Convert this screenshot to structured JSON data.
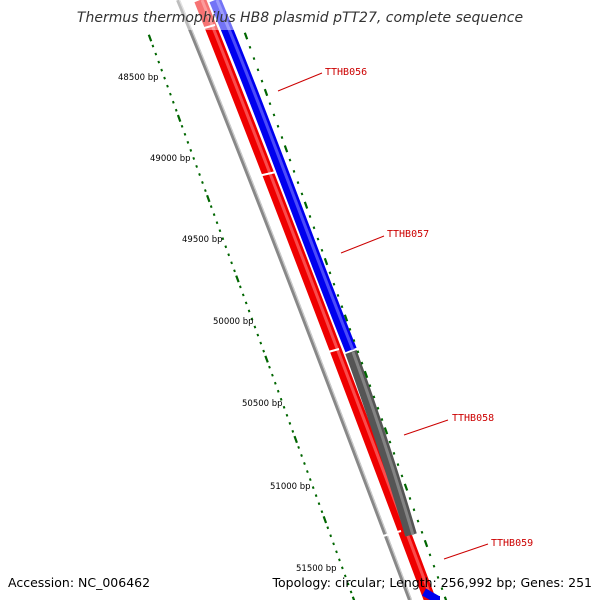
{
  "title": "Thermus thermophilus HB8 plasmid pTT27, complete sequence",
  "footer": {
    "accession": "Accession: NC_006462",
    "summary": "Topology: circular; Length: 256,992 bp; Genes: 251"
  },
  "ruler": {
    "labels": [
      "48500 bp",
      "49000 bp",
      "49500 bp",
      "50000 bp",
      "50500 bp",
      "51000 bp",
      "51500 bp"
    ]
  },
  "genes": [
    {
      "name": "TTHB056",
      "strand": "plus",
      "color": "#0000ee"
    },
    {
      "name": "TTHB057",
      "strand": "plus",
      "color": "#0000ee"
    },
    {
      "name": "TTHB058",
      "strand": "plus",
      "color": "#555555"
    },
    {
      "name": "TTHB059",
      "strand": "plus",
      "color": "#0000ee"
    }
  ],
  "colors": {
    "cds_forward": "#0000ee",
    "cds_reverse": "#ee0000",
    "rna_or_other": "#555555",
    "backbone": "#888888",
    "ruler_ticks": "#006600",
    "label_text": "#cc0000"
  }
}
